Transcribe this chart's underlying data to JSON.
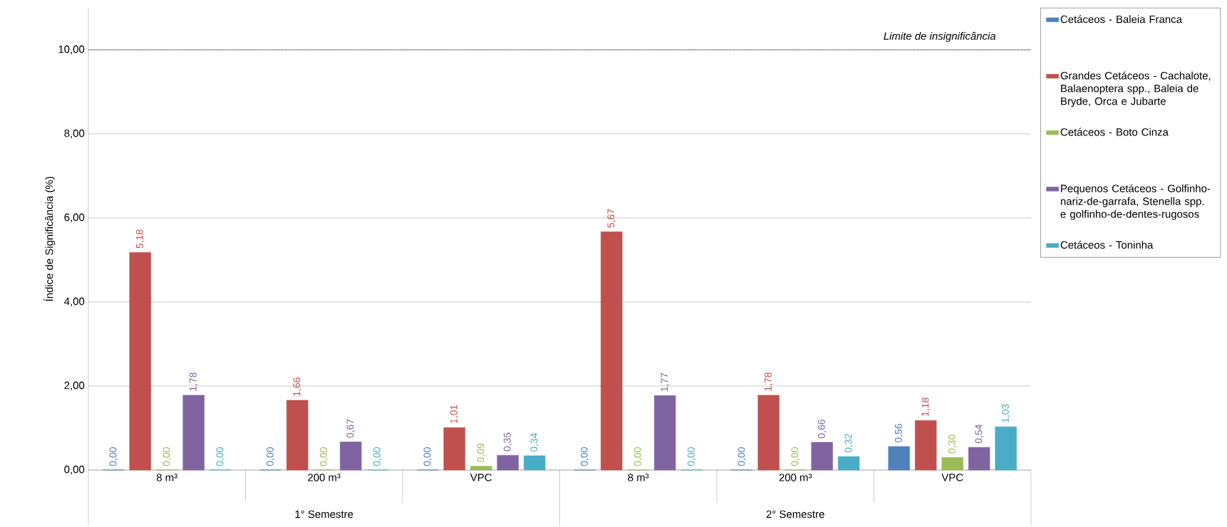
{
  "chart_data": {
    "type": "bar",
    "ylabel": "Índice de Significância (%)",
    "categories": [
      "8 m³",
      "200 m³",
      "VPC",
      "8 m³",
      "200 m³",
      "VPC"
    ],
    "series": [
      {
        "name": "Cetáceos - Baleia Franca",
        "color": "#4f81bd",
        "values": [
          0,
          0,
          0,
          0,
          0,
          0.56
        ],
        "value_labels": [
          "0,00",
          "0,00",
          "0,00",
          "0,00",
          "0,00",
          "0,56"
        ]
      },
      {
        "name": "Grandes Cetáceos - Cachalote, Balaenoptera spp., Baleia de Bryde, Orca e Jubarte",
        "color": "#c0504d",
        "values": [
          5.18,
          1.66,
          1.01,
          5.67,
          1.78,
          1.18
        ],
        "value_labels": [
          "5,18",
          "1,66",
          "1,01",
          "5,67",
          "1,78",
          "1,18"
        ]
      },
      {
        "name": "Cetáceos - Boto Cinza",
        "color": "#9bbb59",
        "values": [
          0,
          0,
          0.09,
          0,
          0,
          0.3
        ],
        "value_labels": [
          "0,00",
          "0,00",
          "0,09",
          "0,00",
          "0,00",
          "0,30"
        ]
      },
      {
        "name": "Pequenos Cetáceos - Golfinho-nariz-de-garrafa, Stenella spp. e golfinho-de-dentes-rugosos",
        "color": "#8064a2",
        "values": [
          1.78,
          0.67,
          0.35,
          1.77,
          0.66,
          0.54
        ],
        "value_labels": [
          "1,78",
          "0,67",
          "0,35",
          "1,77",
          "0,66",
          "0,54"
        ]
      },
      {
        "name": "Cetáceos - Toninha",
        "color": "#4bacc6",
        "values": [
          0,
          0,
          0.34,
          0,
          0.32,
          1.03
        ],
        "value_labels": [
          "0,00",
          "0,00",
          "0,34",
          "0,00",
          "0,32",
          "1,03"
        ]
      }
    ],
    "ylim": [
      0,
      11
    ],
    "yticks": [
      {
        "value": 0,
        "label": "0,00"
      },
      {
        "value": 2,
        "label": "2,00"
      },
      {
        "value": 4,
        "label": "4,00"
      },
      {
        "value": 6,
        "label": "6,00"
      },
      {
        "value": 8,
        "label": "8,00"
      },
      {
        "value": 10,
        "label": "10,00"
      }
    ],
    "grid": "y",
    "legend": "right",
    "ref_lines": [
      {
        "axis": "y",
        "value": 10,
        "label": "Limite de insignificância",
        "color": "#7f7f7f",
        "line_style": "dotted"
      }
    ],
    "annotations": [
      "1° Semestre",
      "2° Semestre"
    ]
  }
}
